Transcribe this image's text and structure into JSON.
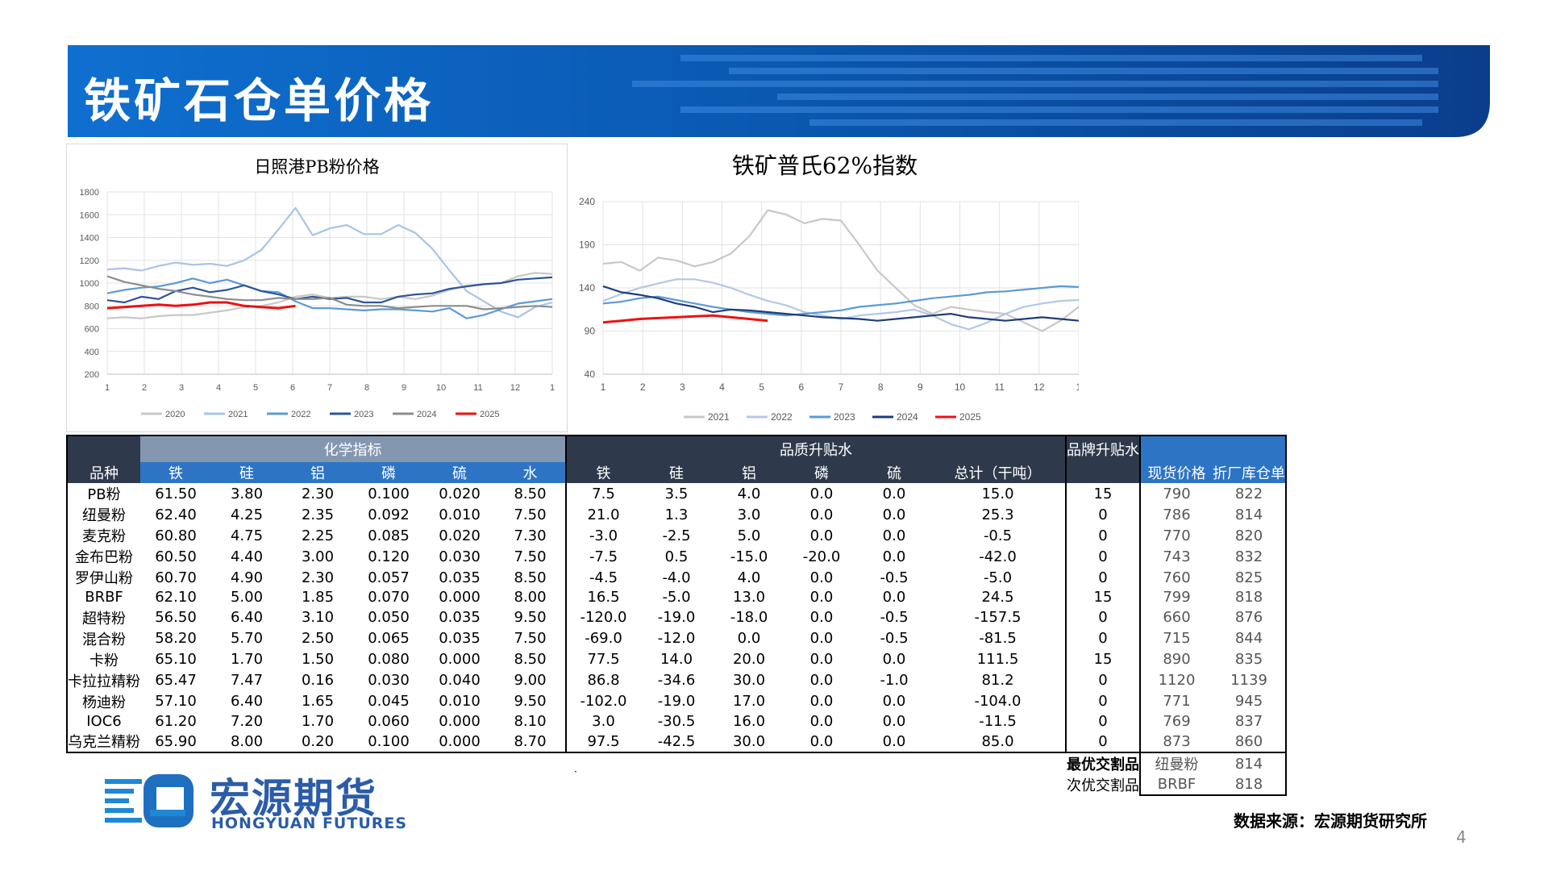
{
  "page_title": "铁矿石仓单价格",
  "source_text": "数据来源：宏源期货研究所",
  "page_number": "4",
  "logo": {
    "cn": "宏源期货",
    "en": "HONGYUAN FUTURES"
  },
  "colors": {
    "accent": "#0f5bb8",
    "red": "#ee1111"
  },
  "chart_data": [
    {
      "type": "line",
      "title": "日照港PB粉价格",
      "ylim": [
        200,
        1800
      ],
      "yticks": [
        200,
        400,
        600,
        800,
        1000,
        1200,
        1400,
        1600,
        1800
      ],
      "x_tick_labels": [
        "1",
        "2",
        "3",
        "4",
        "5",
        "6",
        "7",
        "8",
        "9",
        "10",
        "11",
        "12",
        "1"
      ],
      "grid": true,
      "legend_position": "bottom",
      "series": [
        {
          "name": "2020",
          "color": "#c8c8c8",
          "values": [
            690,
            700,
            690,
            710,
            720,
            720,
            740,
            760,
            790,
            800,
            830,
            880,
            900,
            870,
            880,
            880,
            860,
            880,
            860,
            890,
            940,
            980,
            990,
            1000,
            1060,
            1090,
            1080
          ]
        },
        {
          "name": "2021",
          "color": "#a9c4e8",
          "values": [
            1120,
            1130,
            1110,
            1150,
            1180,
            1160,
            1170,
            1150,
            1200,
            1290,
            1470,
            1660,
            1420,
            1480,
            1510,
            1430,
            1430,
            1510,
            1440,
            1300,
            1110,
            930,
            840,
            750,
            700,
            790,
            830
          ]
        },
        {
          "name": "2022",
          "color": "#5b9bd5",
          "values": [
            910,
            940,
            960,
            970,
            1000,
            1040,
            1000,
            1030,
            980,
            930,
            920,
            840,
            780,
            780,
            770,
            760,
            770,
            770,
            760,
            750,
            780,
            690,
            720,
            770,
            820,
            840,
            860
          ]
        },
        {
          "name": "2023",
          "color": "#2f5597",
          "values": [
            850,
            830,
            880,
            860,
            930,
            960,
            920,
            940,
            980,
            930,
            900,
            860,
            880,
            860,
            870,
            830,
            830,
            880,
            900,
            910,
            950,
            970,
            990,
            1000,
            1030,
            1040,
            1050
          ]
        },
        {
          "name": "2024",
          "color": "#8c8c8c",
          "values": [
            1060,
            1010,
            980,
            950,
            930,
            900,
            880,
            860,
            850,
            850,
            870,
            860,
            860,
            870,
            810,
            800,
            800,
            780,
            790,
            800,
            800,
            800,
            770,
            780,
            790,
            800,
            790
          ]
        },
        {
          "name": "2025",
          "color": "#ee1111",
          "values": [
            780,
            790,
            800,
            810,
            800,
            810,
            830,
            830,
            800,
            790,
            780,
            800
          ]
        }
      ]
    },
    {
      "type": "line",
      "title": "铁矿普氏62%指数",
      "ylim": [
        40,
        240
      ],
      "yticks": [
        40,
        90,
        140,
        190,
        240
      ],
      "x_tick_labels": [
        "1",
        "2",
        "3",
        "4",
        "5",
        "6",
        "7",
        "8",
        "9",
        "10",
        "11",
        "12",
        "1"
      ],
      "grid": true,
      "legend_position": "bottom",
      "series": [
        {
          "name": "2021",
          "color": "#c8c8c8",
          "values": [
            168,
            170,
            160,
            175,
            172,
            165,
            170,
            180,
            200,
            230,
            225,
            215,
            220,
            218,
            190,
            160,
            140,
            120,
            110,
            118,
            115,
            112,
            110,
            100,
            90,
            102,
            118
          ]
        },
        {
          "name": "2022",
          "color": "#b4c7e7",
          "values": [
            125,
            133,
            140,
            145,
            150,
            150,
            146,
            140,
            132,
            125,
            120,
            112,
            108,
            104,
            108,
            110,
            112,
            115,
            108,
            98,
            92,
            100,
            110,
            118,
            122,
            125,
            126
          ]
        },
        {
          "name": "2023",
          "color": "#5b9bd5",
          "values": [
            122,
            124,
            128,
            130,
            126,
            122,
            118,
            115,
            112,
            110,
            108,
            110,
            112,
            114,
            118,
            120,
            122,
            125,
            128,
            130,
            132,
            135,
            136,
            138,
            140,
            142,
            141
          ]
        },
        {
          "name": "2024",
          "color": "#1f3c7a",
          "values": [
            142,
            135,
            132,
            128,
            122,
            118,
            112,
            115,
            114,
            112,
            110,
            108,
            106,
            105,
            104,
            102,
            104,
            106,
            108,
            110,
            106,
            104,
            102,
            104,
            106,
            104,
            102
          ]
        },
        {
          "name": "2025",
          "color": "#ee1111",
          "values": [
            100,
            102,
            104,
            105,
            106,
            107,
            108,
            106,
            104,
            102
          ]
        }
      ]
    }
  ],
  "table": {
    "group_headers": {
      "chem": "化学指标",
      "quality": "品质升贴水",
      "brand": "品牌升贴水"
    },
    "col_headers": [
      "品种",
      "铁",
      "硅",
      "铝",
      "磷",
      "硫",
      "水",
      "铁",
      "硅",
      "铝",
      "磷",
      "硫",
      "总计（干吨）",
      "现货价格",
      "折厂库仓单"
    ],
    "rows": [
      {
        "name": "PB粉",
        "fe": "61.50",
        "si": "3.80",
        "al": "2.30",
        "p": "0.100",
        "s": "0.020",
        "h2o": "8.50",
        "qfe": "7.5",
        "qsi": "3.5",
        "qal": "4.0",
        "qp": "0.0",
        "qs": "0.0",
        "total": "15.0",
        "brand": "15",
        "spot": "790",
        "wr": "822"
      },
      {
        "name": "纽曼粉",
        "fe": "62.40",
        "si": "4.25",
        "al": "2.35",
        "p": "0.092",
        "s": "0.010",
        "h2o": "7.50",
        "qfe": "21.0",
        "qsi": "1.3",
        "qal": "3.0",
        "qp": "0.0",
        "qs": "0.0",
        "total": "25.3",
        "brand": "0",
        "spot": "786",
        "wr": "814"
      },
      {
        "name": "麦克粉",
        "fe": "60.80",
        "si": "4.75",
        "al": "2.25",
        "p": "0.085",
        "s": "0.020",
        "h2o": "7.30",
        "qfe": "-3.0",
        "qsi": "-2.5",
        "qal": "5.0",
        "qp": "0.0",
        "qs": "0.0",
        "total": "-0.5",
        "brand": "0",
        "spot": "770",
        "wr": "820"
      },
      {
        "name": "金布巴粉",
        "fe": "60.50",
        "si": "4.40",
        "al": "3.00",
        "p": "0.120",
        "s": "0.030",
        "h2o": "7.50",
        "qfe": "-7.5",
        "qsi": "0.5",
        "qal": "-15.0",
        "qp": "-20.0",
        "qs": "0.0",
        "total": "-42.0",
        "brand": "0",
        "spot": "743",
        "wr": "832"
      },
      {
        "name": "罗伊山粉",
        "fe": "60.70",
        "si": "4.90",
        "al": "2.30",
        "p": "0.057",
        "s": "0.035",
        "h2o": "8.50",
        "qfe": "-4.5",
        "qsi": "-4.0",
        "qal": "4.0",
        "qp": "0.0",
        "qs": "-0.5",
        "total": "-5.0",
        "brand": "0",
        "spot": "760",
        "wr": "825"
      },
      {
        "name": "BRBF",
        "fe": "62.10",
        "si": "5.00",
        "al": "1.85",
        "p": "0.070",
        "s": "0.000",
        "h2o": "8.00",
        "qfe": "16.5",
        "qsi": "-5.0",
        "qal": "13.0",
        "qp": "0.0",
        "qs": "0.0",
        "total": "24.5",
        "brand": "15",
        "spot": "799",
        "wr": "818"
      },
      {
        "name": "超特粉",
        "fe": "56.50",
        "si": "6.40",
        "al": "3.10",
        "p": "0.050",
        "s": "0.035",
        "h2o": "9.50",
        "qfe": "-120.0",
        "qsi": "-19.0",
        "qal": "-18.0",
        "qp": "0.0",
        "qs": "-0.5",
        "total": "-157.5",
        "brand": "0",
        "spot": "660",
        "wr": "876"
      },
      {
        "name": "混合粉",
        "fe": "58.20",
        "si": "5.70",
        "al": "2.50",
        "p": "0.065",
        "s": "0.035",
        "h2o": "7.50",
        "qfe": "-69.0",
        "qsi": "-12.0",
        "qal": "0.0",
        "qp": "0.0",
        "qs": "-0.5",
        "total": "-81.5",
        "brand": "0",
        "spot": "715",
        "wr": "844"
      },
      {
        "name": "卡粉",
        "fe": "65.10",
        "si": "1.70",
        "al": "1.50",
        "p": "0.080",
        "s": "0.000",
        "h2o": "8.50",
        "qfe": "77.5",
        "qsi": "14.0",
        "qal": "20.0",
        "qp": "0.0",
        "qs": "0.0",
        "total": "111.5",
        "brand": "15",
        "spot": "890",
        "wr": "835"
      },
      {
        "name": "卡拉拉精粉",
        "fe": "65.47",
        "si": "7.47",
        "al": "0.16",
        "p": "0.030",
        "s": "0.040",
        "h2o": "9.00",
        "qfe": "86.8",
        "qsi": "-34.6",
        "qal": "30.0",
        "qp": "0.0",
        "qs": "-1.0",
        "total": "81.2",
        "brand": "0",
        "spot": "1120",
        "wr": "1139"
      },
      {
        "name": "杨迪粉",
        "fe": "57.10",
        "si": "6.40",
        "al": "1.65",
        "p": "0.045",
        "s": "0.010",
        "h2o": "9.50",
        "qfe": "-102.0",
        "qsi": "-19.0",
        "qal": "17.0",
        "qp": "0.0",
        "qs": "0.0",
        "total": "-104.0",
        "brand": "0",
        "spot": "771",
        "wr": "945"
      },
      {
        "name": "IOC6",
        "fe": "61.20",
        "si": "7.20",
        "al": "1.70",
        "p": "0.060",
        "s": "0.000",
        "h2o": "8.10",
        "qfe": "3.0",
        "qsi": "-30.5",
        "qal": "16.0",
        "qp": "0.0",
        "qs": "0.0",
        "total": "-11.5",
        "brand": "0",
        "spot": "769",
        "wr": "837"
      },
      {
        "name": "乌克兰精粉",
        "fe": "65.90",
        "si": "8.00",
        "al": "0.20",
        "p": "0.100",
        "s": "0.000",
        "h2o": "8.70",
        "qfe": "97.5",
        "qsi": "-42.5",
        "qal": "30.0",
        "qp": "0.0",
        "qs": "0.0",
        "total": "85.0",
        "brand": "0",
        "spot": "873",
        "wr": "860"
      }
    ],
    "extra_rows": [
      {
        "label": "最优交割品",
        "name": "纽曼粉",
        "value": "814"
      },
      {
        "label": "次优交割品",
        "name": "BRBF",
        "value": "818"
      }
    ]
  }
}
